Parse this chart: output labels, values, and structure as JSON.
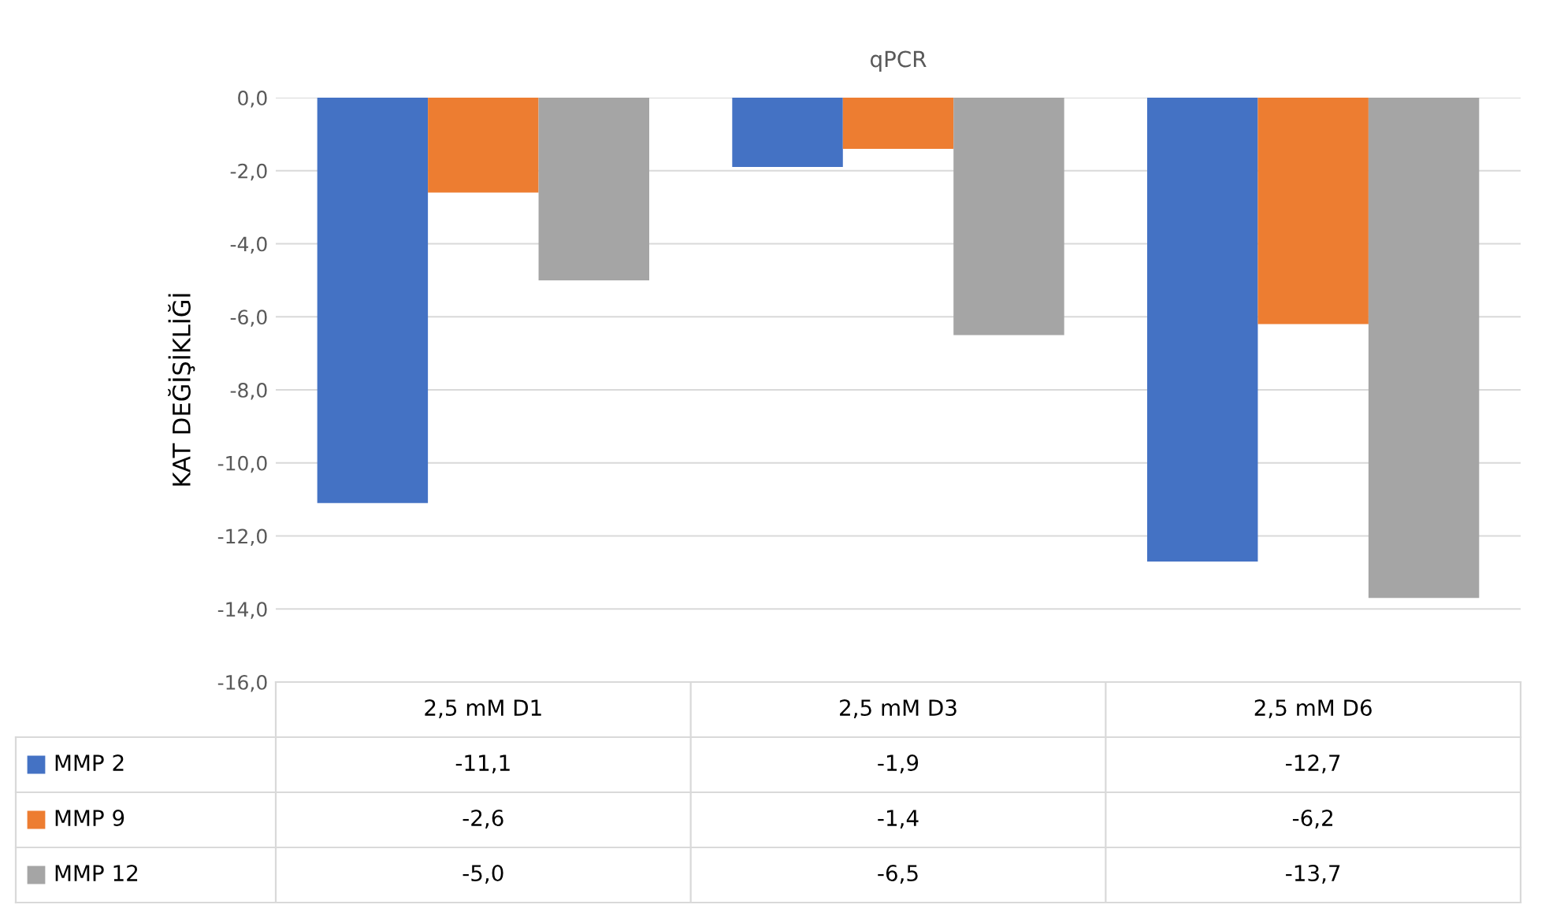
{
  "chart_data": {
    "type": "bar",
    "title": "qPCR",
    "ylabel": "KAT DEĞİŞİKLİĞİ",
    "categories": [
      "2,5 mM D1",
      "2,5 mM D3",
      "2,5 mM D6"
    ],
    "series": [
      {
        "name": "MMP 2",
        "color": "#4472c4",
        "values": [
          -11.1,
          -1.9,
          -12.7
        ],
        "value_labels": [
          "-11,1",
          "-1,9",
          "-12,7"
        ]
      },
      {
        "name": "MMP 9",
        "color": "#ed7d31",
        "values": [
          -2.6,
          -1.4,
          -6.2
        ],
        "value_labels": [
          "-2,6",
          "-1,4",
          "-6,2"
        ]
      },
      {
        "name": "MMP 12",
        "color": "#a5a5a5",
        "values": [
          -5.0,
          -6.5,
          -13.7
        ],
        "value_labels": [
          "-5,0",
          "-6,5",
          "-13,7"
        ]
      }
    ],
    "ylim": [
      -16,
      0
    ],
    "yticks": [
      {
        "value": 0,
        "label": "0,0"
      },
      {
        "value": -2,
        "label": "-2,0"
      },
      {
        "value": -4,
        "label": "-4,0"
      },
      {
        "value": -6,
        "label": "-6,0"
      },
      {
        "value": -8,
        "label": "-8,0"
      },
      {
        "value": -10,
        "label": "-10,0"
      },
      {
        "value": -12,
        "label": "-12,0"
      },
      {
        "value": -14,
        "label": "-14,0"
      },
      {
        "value": -16,
        "label": "-16,0"
      }
    ],
    "grid": "y",
    "legend": "bottom"
  }
}
